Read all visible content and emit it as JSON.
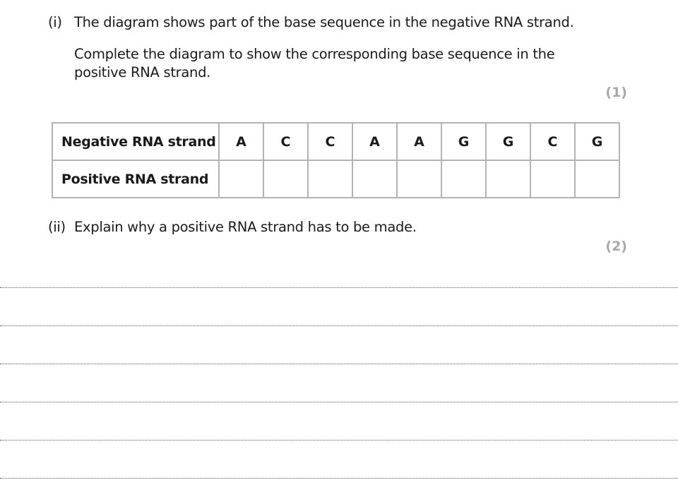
{
  "part_i": {
    "label": "(i)",
    "text": "The diagram shows part of the base sequence in the negative RNA strand.",
    "instruction_line1": "Complete the diagram to show the corresponding base sequence in the",
    "instruction_line2": "positive RNA strand.",
    "marks": "(1)"
  },
  "table": {
    "rows": [
      {
        "label": "Negative RNA strand",
        "bases": [
          "A",
          "C",
          "C",
          "A",
          "A",
          "G",
          "G",
          "C",
          "G"
        ]
      },
      {
        "label": "Positive RNA strand",
        "bases": [
          "",
          "",
          "",
          "",
          "",
          "",
          "",
          "",
          ""
        ]
      }
    ]
  },
  "part_ii": {
    "label": "(ii)",
    "text": "Explain why a positive RNA strand has to be made.",
    "marks": "(2)"
  }
}
